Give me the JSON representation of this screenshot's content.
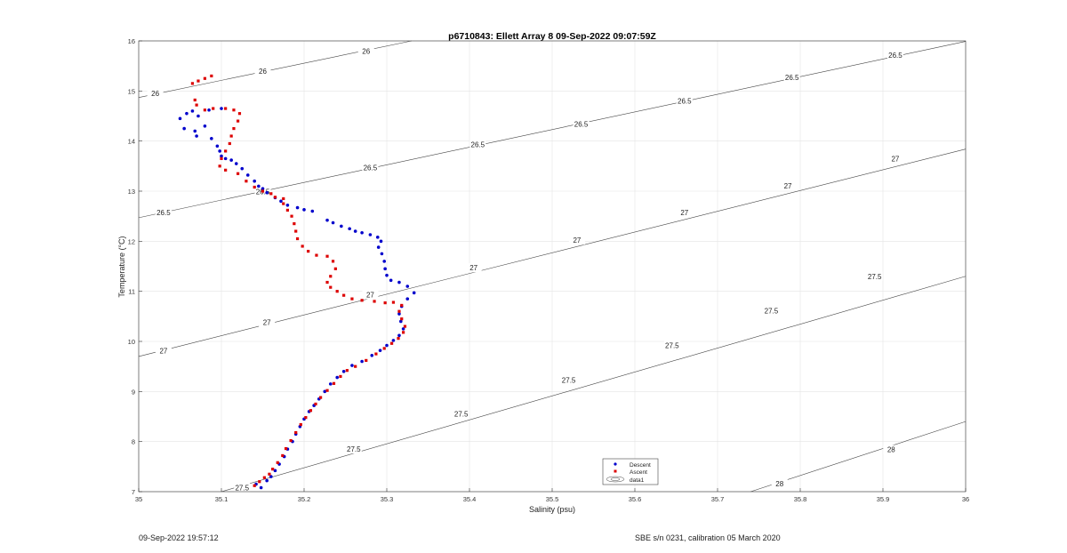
{
  "chart_data": {
    "type": "scatter",
    "title": "p6710843: Ellett Array 8 09-Sep-2022 09:07:59Z",
    "xlabel": "Salinity (psu)",
    "ylabel": "Temperature (°C)",
    "xlim": [
      35,
      36
    ],
    "ylim": [
      7,
      16
    ],
    "xticks": [
      "35",
      "35.1",
      "35.2",
      "35.3",
      "35.4",
      "35.5",
      "35.6",
      "35.7",
      "35.8",
      "35.9",
      "36"
    ],
    "yticks": [
      "7",
      "8",
      "9",
      "10",
      "11",
      "12",
      "13",
      "14",
      "15",
      "16"
    ],
    "grid": true,
    "legend_position": "bottom-center",
    "contours": {
      "series_name": "data1",
      "levels": [
        "26",
        "26.5",
        "27",
        "27.5",
        "28"
      ],
      "lines": [
        {
          "level": "26",
          "points": [
            [
              35.0,
              14.87
            ],
            [
              35.33,
              16.0
            ]
          ]
        },
        {
          "level": "26.5",
          "points": [
            [
              35.0,
              12.47
            ],
            [
              36.0,
              15.99
            ]
          ]
        },
        {
          "level": "27",
          "points": [
            [
              35.0,
              9.7
            ],
            [
              36.0,
              13.84
            ]
          ]
        },
        {
          "level": "27.5",
          "points": [
            [
              35.1,
              7.0
            ],
            [
              36.0,
              11.3
            ]
          ]
        },
        {
          "level": "28",
          "points": [
            [
              35.74,
              7.0
            ],
            [
              36.0,
              8.4
            ]
          ]
        }
      ],
      "labels": [
        {
          "text": "26",
          "x": 35.02,
          "y": 14.95
        },
        {
          "text": "26",
          "x": 35.15,
          "y": 15.4
        },
        {
          "text": "26",
          "x": 35.275,
          "y": 15.8
        },
        {
          "text": "26.5",
          "x": 35.03,
          "y": 12.57
        },
        {
          "text": "26.5",
          "x": 35.15,
          "y": 12.99
        },
        {
          "text": "26.5",
          "x": 35.28,
          "y": 13.47
        },
        {
          "text": "26.5",
          "x": 35.41,
          "y": 13.93
        },
        {
          "text": "26.5",
          "x": 35.535,
          "y": 14.34
        },
        {
          "text": "26.5",
          "x": 35.66,
          "y": 14.8
        },
        {
          "text": "26.5",
          "x": 35.79,
          "y": 15.27
        },
        {
          "text": "26.5",
          "x": 35.915,
          "y": 15.72
        },
        {
          "text": "27",
          "x": 35.03,
          "y": 9.81
        },
        {
          "text": "27",
          "x": 35.155,
          "y": 10.38
        },
        {
          "text": "27",
          "x": 35.28,
          "y": 10.93
        },
        {
          "text": "27",
          "x": 35.405,
          "y": 11.47
        },
        {
          "text": "27",
          "x": 35.53,
          "y": 12.02
        },
        {
          "text": "27",
          "x": 35.66,
          "y": 12.57
        },
        {
          "text": "27",
          "x": 35.785,
          "y": 13.11
        },
        {
          "text": "27",
          "x": 35.915,
          "y": 13.65
        },
        {
          "text": "27.5",
          "x": 35.125,
          "y": 7.08
        },
        {
          "text": "27.5",
          "x": 35.26,
          "y": 7.85
        },
        {
          "text": "27.5",
          "x": 35.39,
          "y": 8.55
        },
        {
          "text": "27.5",
          "x": 35.52,
          "y": 9.23
        },
        {
          "text": "27.5",
          "x": 35.645,
          "y": 9.92
        },
        {
          "text": "27.5",
          "x": 35.765,
          "y": 10.61
        },
        {
          "text": "27.5",
          "x": 35.89,
          "y": 11.3
        },
        {
          "text": "28",
          "x": 35.775,
          "y": 7.16
        },
        {
          "text": "28",
          "x": 35.91,
          "y": 7.84
        }
      ]
    },
    "series": [
      {
        "name": "Descent",
        "color": "#0000cc",
        "marker": "dot",
        "points": [
          [
            35.148,
            7.08
          ],
          [
            35.142,
            7.15
          ],
          [
            35.155,
            7.22
          ],
          [
            35.16,
            7.3
          ],
          [
            35.165,
            7.42
          ],
          [
            35.17,
            7.55
          ],
          [
            35.176,
            7.7
          ],
          [
            35.18,
            7.85
          ],
          [
            35.186,
            8.0
          ],
          [
            35.19,
            8.15
          ],
          [
            35.195,
            8.3
          ],
          [
            35.2,
            8.45
          ],
          [
            35.206,
            8.6
          ],
          [
            35.212,
            8.72
          ],
          [
            35.218,
            8.85
          ],
          [
            35.225,
            9.0
          ],
          [
            35.232,
            9.15
          ],
          [
            35.24,
            9.28
          ],
          [
            35.248,
            9.4
          ],
          [
            35.258,
            9.52
          ],
          [
            35.27,
            9.6
          ],
          [
            35.282,
            9.72
          ],
          [
            35.292,
            9.82
          ],
          [
            35.3,
            9.92
          ],
          [
            35.308,
            10.02
          ],
          [
            35.315,
            10.12
          ],
          [
            35.32,
            10.25
          ],
          [
            35.317,
            10.4
          ],
          [
            35.315,
            10.55
          ],
          [
            35.318,
            10.7
          ],
          [
            35.325,
            10.85
          ],
          [
            35.333,
            10.97
          ],
          [
            35.325,
            11.1
          ],
          [
            35.315,
            11.18
          ],
          [
            35.305,
            11.22
          ],
          [
            35.3,
            11.32
          ],
          [
            35.298,
            11.45
          ],
          [
            35.297,
            11.6
          ],
          [
            35.294,
            11.75
          ],
          [
            35.29,
            11.88
          ],
          [
            35.293,
            12.0
          ],
          [
            35.289,
            12.08
          ],
          [
            35.28,
            12.13
          ],
          [
            35.27,
            12.17
          ],
          [
            35.262,
            12.2
          ],
          [
            35.255,
            12.25
          ],
          [
            35.245,
            12.3
          ],
          [
            35.235,
            12.37
          ],
          [
            35.228,
            12.42
          ],
          [
            35.21,
            12.6
          ],
          [
            35.2,
            12.63
          ],
          [
            35.192,
            12.67
          ],
          [
            35.18,
            12.72
          ],
          [
            35.172,
            12.8
          ],
          [
            35.165,
            12.87
          ],
          [
            35.155,
            12.97
          ],
          [
            35.15,
            13.05
          ],
          [
            35.145,
            13.1
          ],
          [
            35.14,
            13.2
          ],
          [
            35.132,
            13.32
          ],
          [
            35.125,
            13.45
          ],
          [
            35.118,
            13.55
          ],
          [
            35.112,
            13.62
          ],
          [
            35.105,
            13.65
          ],
          [
            35.1,
            13.7
          ],
          [
            35.098,
            13.8
          ],
          [
            35.095,
            13.9
          ],
          [
            35.088,
            14.05
          ],
          [
            35.08,
            14.3
          ],
          [
            35.072,
            14.5
          ],
          [
            35.065,
            14.6
          ],
          [
            35.058,
            14.55
          ],
          [
            35.05,
            14.45
          ],
          [
            35.055,
            14.25
          ],
          [
            35.068,
            14.2
          ],
          [
            35.07,
            14.1
          ],
          [
            35.085,
            14.62
          ],
          [
            35.1,
            14.65
          ]
        ]
      },
      {
        "name": "Ascent",
        "color": "#dd0000",
        "marker": "square",
        "points": [
          [
            35.14,
            7.12
          ],
          [
            35.146,
            7.2
          ],
          [
            35.152,
            7.28
          ],
          [
            35.158,
            7.35
          ],
          [
            35.162,
            7.45
          ],
          [
            35.168,
            7.58
          ],
          [
            35.174,
            7.72
          ],
          [
            35.178,
            7.86
          ],
          [
            35.184,
            8.02
          ],
          [
            35.19,
            8.18
          ],
          [
            35.196,
            8.34
          ],
          [
            35.202,
            8.48
          ],
          [
            35.208,
            8.62
          ],
          [
            35.214,
            8.75
          ],
          [
            35.22,
            8.88
          ],
          [
            35.228,
            9.02
          ],
          [
            35.236,
            9.16
          ],
          [
            35.244,
            9.3
          ],
          [
            35.252,
            9.42
          ],
          [
            35.262,
            9.5
          ],
          [
            35.275,
            9.62
          ],
          [
            35.287,
            9.75
          ],
          [
            35.297,
            9.86
          ],
          [
            35.306,
            9.96
          ],
          [
            35.314,
            10.06
          ],
          [
            35.32,
            10.18
          ],
          [
            35.322,
            10.3
          ],
          [
            35.318,
            10.45
          ],
          [
            35.315,
            10.6
          ],
          [
            35.318,
            10.72
          ],
          [
            35.308,
            10.78
          ],
          [
            35.298,
            10.77
          ],
          [
            35.285,
            10.8
          ],
          [
            35.27,
            10.82
          ],
          [
            35.258,
            10.85
          ],
          [
            35.248,
            10.92
          ],
          [
            35.24,
            11.0
          ],
          [
            35.232,
            11.08
          ],
          [
            35.228,
            11.18
          ],
          [
            35.232,
            11.3
          ],
          [
            35.238,
            11.45
          ],
          [
            35.235,
            11.6
          ],
          [
            35.228,
            11.7
          ],
          [
            35.215,
            11.72
          ],
          [
            35.205,
            11.8
          ],
          [
            35.198,
            11.9
          ],
          [
            35.192,
            12.05
          ],
          [
            35.19,
            12.2
          ],
          [
            35.188,
            12.35
          ],
          [
            35.185,
            12.5
          ],
          [
            35.18,
            12.62
          ],
          [
            35.175,
            12.75
          ],
          [
            35.175,
            12.85
          ],
          [
            35.165,
            12.88
          ],
          [
            35.16,
            12.95
          ],
          [
            35.15,
            13.0
          ],
          [
            35.14,
            13.08
          ],
          [
            35.13,
            13.2
          ],
          [
            35.12,
            13.35
          ],
          [
            35.105,
            13.42
          ],
          [
            35.098,
            13.5
          ],
          [
            35.1,
            13.65
          ],
          [
            35.105,
            13.8
          ],
          [
            35.11,
            13.95
          ],
          [
            35.112,
            14.1
          ],
          [
            35.115,
            14.25
          ],
          [
            35.12,
            14.4
          ],
          [
            35.122,
            14.55
          ],
          [
            35.115,
            14.62
          ],
          [
            35.105,
            14.65
          ],
          [
            35.09,
            14.65
          ],
          [
            35.08,
            14.62
          ],
          [
            35.07,
            14.72
          ],
          [
            35.068,
            14.82
          ],
          [
            35.065,
            15.15
          ],
          [
            35.072,
            15.2
          ],
          [
            35.08,
            15.25
          ],
          [
            35.088,
            15.3
          ]
        ]
      }
    ]
  },
  "footer": {
    "left": "09-Sep-2022 19:57:12",
    "right": "SBE s/n 0231, calibration 05 March 2020"
  }
}
